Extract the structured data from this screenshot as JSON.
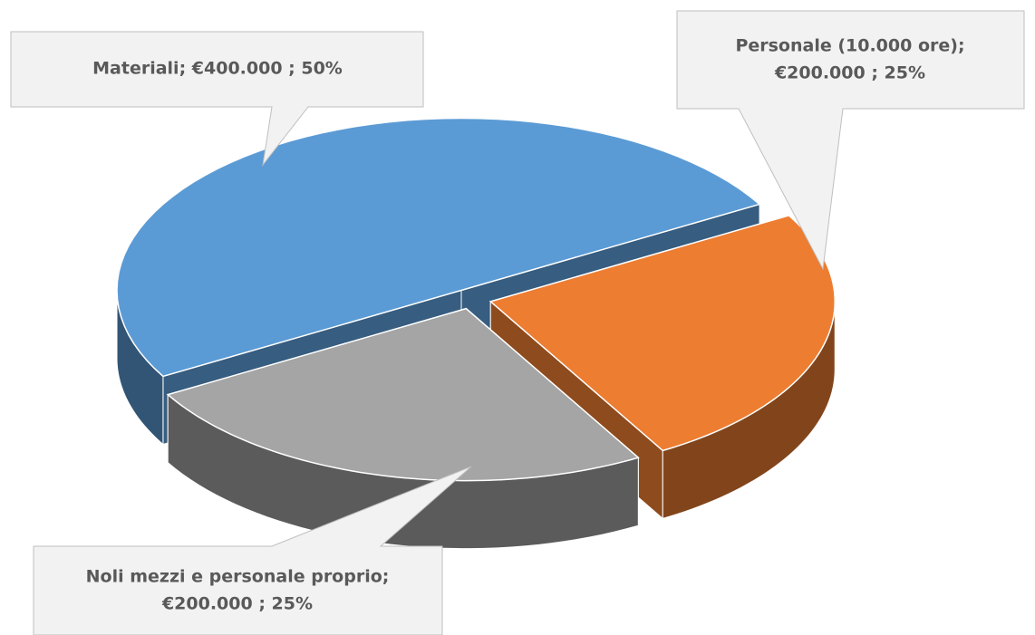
{
  "chart_data": {
    "type": "pie",
    "values": [
      400000,
      200000,
      200000
    ],
    "value_labels": [
      [
        "Materiali; €400.000 ; 50%"
      ],
      [
        "Personale (10.000 ore);",
        "€200.000 ; 25%"
      ],
      [
        "Noli mezzi e personale proprio;",
        "€200.000 ; 25%"
      ]
    ],
    "colors": [
      "#5b9bd5",
      "#ed7d31",
      "#a5a5a5"
    ]
  }
}
